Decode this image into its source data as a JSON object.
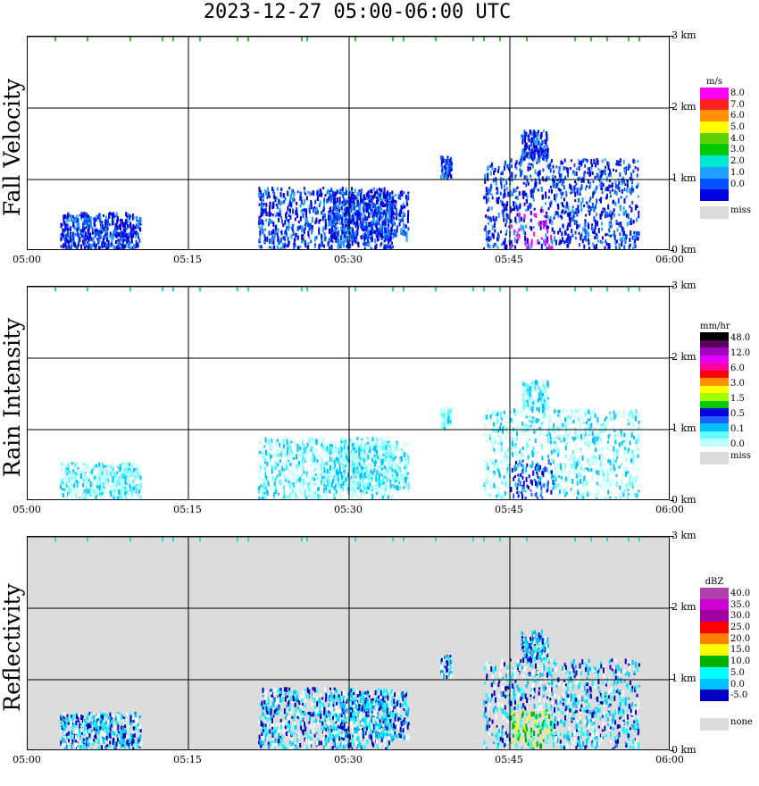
{
  "title": "2023-12-27  05:00-06:00 UTC",
  "time_ticks": [
    "05:00",
    "05:15",
    "05:30",
    "05:45",
    "06:00"
  ],
  "height_ticks": [
    "0 km",
    "1 km",
    "2 km",
    "3 km"
  ],
  "chart_data": [
    {
      "type": "heatmap",
      "name": "fall-velocity",
      "ylabel": "Fall Velocity",
      "unit": "m/s",
      "xlim_minutes": [
        0,
        60
      ],
      "ylim_km": [
        0,
        3
      ],
      "background": "#ffffff",
      "colorbar": {
        "labels": [
          "8.0",
          "7.0",
          "6.0",
          "5.0",
          "4.0",
          "3.0",
          "2.0",
          "1.0",
          "0.0"
        ],
        "colors": [
          "#ff00ff",
          "#ff2020",
          "#ff9000",
          "#ffff00",
          "#60d000",
          "#00c800",
          "#00e8d0",
          "#20a0ff",
          "#0050ff",
          "#0000e0"
        ],
        "missing_label": "miss"
      }
    },
    {
      "type": "heatmap",
      "name": "rain-intensity",
      "ylabel": "Rain Intensity",
      "unit": "mm/hr",
      "xlim_minutes": [
        0,
        60
      ],
      "ylim_km": [
        0,
        3
      ],
      "background": "#ffffff",
      "colorbar": {
        "labels": [
          "48.0",
          "12.0",
          "6.0",
          "3.0",
          "1.5",
          "0.5",
          "0.1",
          "0.0"
        ],
        "colors": [
          "#000000",
          "#5a005a",
          "#a000c0",
          "#e000ff",
          "#ff00a0",
          "#ff0000",
          "#ff9000",
          "#ffff00",
          "#a0ff00",
          "#00c800",
          "#0000e0",
          "#2060ff",
          "#00c0ff",
          "#60ffff",
          "#c0ffff"
        ],
        "missing_label": "miss"
      }
    },
    {
      "type": "heatmap",
      "name": "reflectivity",
      "ylabel": "Reflectivity",
      "unit": "dBZ",
      "xlim_minutes": [
        0,
        60
      ],
      "ylim_km": [
        0,
        3
      ],
      "background": "#dcdcdc",
      "colorbar": {
        "labels": [
          "40.0",
          "35.0",
          "30.0",
          "25.0",
          "20.0",
          "15.0",
          "10.0",
          "5.0",
          "0.0",
          "-5.0"
        ],
        "colors": [
          "#b040b0",
          "#d000d0",
          "#a000a0",
          "#ff0000",
          "#ff8000",
          "#ffff00",
          "#00b000",
          "#00ffff",
          "#00c0ff",
          "#0000c0",
          "#ffffff"
        ],
        "missing_label": "none"
      }
    }
  ],
  "storm_cells": [
    {
      "t0": 3,
      "t1": 10.5,
      "h0": 0.05,
      "h1": 0.55
    },
    {
      "t0": 21.5,
      "t1": 34,
      "h0": 0.05,
      "h1": 0.9
    },
    {
      "t0": 28,
      "t1": 35.5,
      "h0": 0.2,
      "h1": 0.85
    },
    {
      "t0": 38.5,
      "t1": 39.5,
      "h0": 1.05,
      "h1": 1.35
    },
    {
      "t0": 42.5,
      "t1": 57,
      "h0": 0.05,
      "h1": 1.3
    },
    {
      "t0": 46,
      "t1": 48.5,
      "h0": 1.3,
      "h1": 1.7
    }
  ],
  "top_strip_minutes": [
    2.5,
    5.5,
    9.5,
    12.5,
    13.5,
    16,
    19.5,
    20.5,
    25.5,
    26,
    30.5,
    34,
    35,
    38,
    41.5,
    42.5,
    44,
    46.5,
    51,
    52.5,
    54,
    56,
    57
  ]
}
